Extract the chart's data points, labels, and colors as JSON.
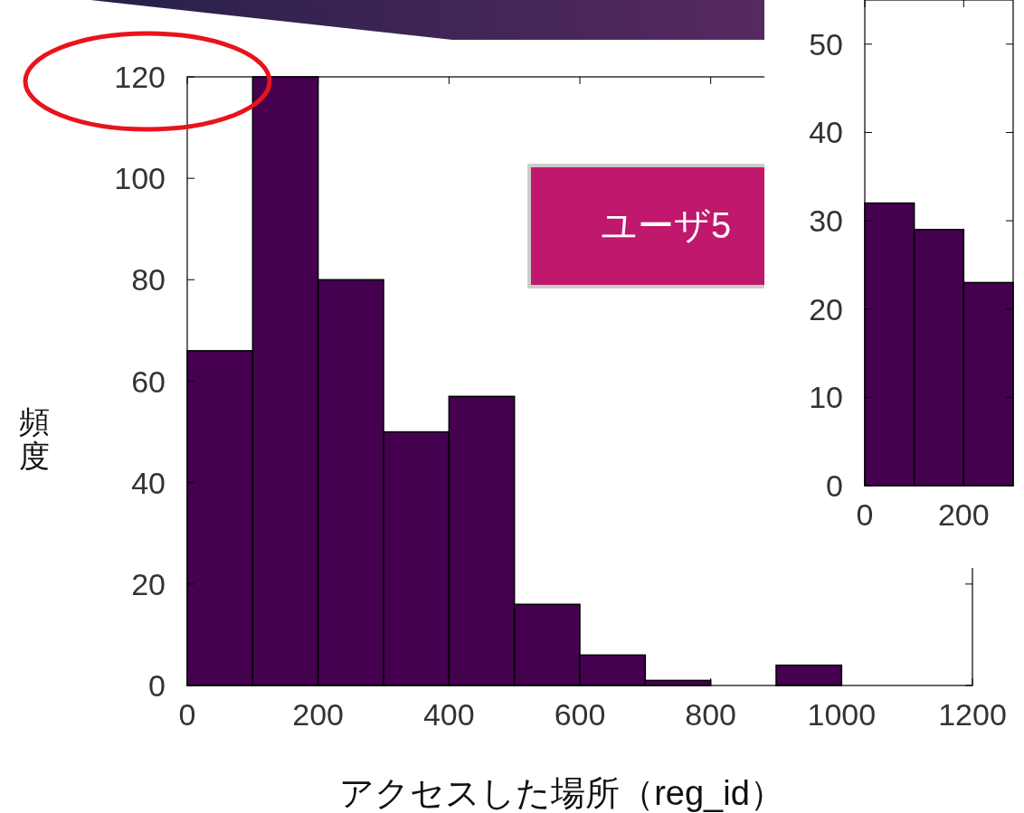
{
  "chart_data": [
    {
      "type": "histogram",
      "xlabel": "アクセスした場所（reg_id）",
      "ylabel": "頻度",
      "bins": [
        0,
        100,
        200,
        300,
        400,
        500,
        600,
        700,
        800,
        900,
        1000,
        1100,
        1200
      ],
      "values": [
        66,
        120,
        80,
        50,
        57,
        16,
        6,
        1,
        0,
        4,
        0,
        0
      ],
      "color": "#450050",
      "xlim": [
        0,
        1200
      ],
      "ylim": [
        0,
        120
      ],
      "xticks": [
        0,
        200,
        400,
        600,
        800,
        1000,
        1200
      ],
      "yticks": [
        0,
        20,
        40,
        60,
        80,
        100,
        120
      ],
      "annotations": [
        "ユーザ5"
      ]
    },
    {
      "type": "histogram",
      "bins": [
        0,
        100,
        200,
        300
      ],
      "values": [
        32,
        29,
        23
      ],
      "color": "#450050",
      "xlim": [
        0,
        300
      ],
      "ylim": [
        0,
        55
      ],
      "xticks": [
        0,
        200
      ],
      "yticks": [
        0,
        10,
        20,
        30,
        40,
        50
      ]
    }
  ]
}
